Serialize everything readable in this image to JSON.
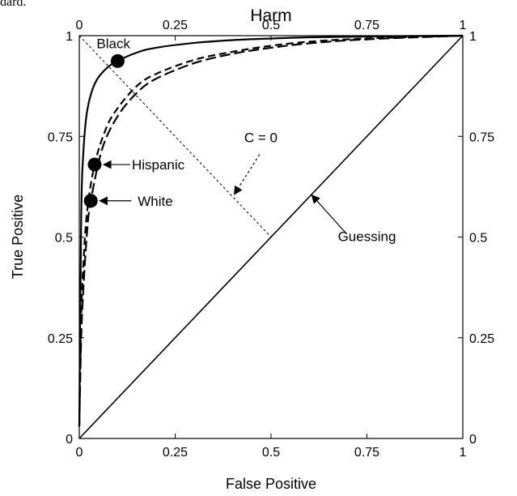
{
  "caption_fragment": "dard.",
  "chart_data": {
    "type": "line",
    "title": "",
    "xlabel": "False Positive",
    "ylabel": "True Positive",
    "x2label": "Harm",
    "xlim": [
      0,
      1
    ],
    "ylim": [
      0,
      1
    ],
    "x2lim": [
      0,
      1
    ],
    "xticks": [
      "0",
      "0.25",
      "0.5",
      "0.75",
      "1"
    ],
    "yticks": [
      "0",
      "0.25",
      "0.5",
      "0.75",
      "1"
    ],
    "x2ticks": [
      "0",
      "0.25",
      "0.5",
      "0.75",
      "1"
    ],
    "y2ticks": [
      "0",
      "0.25",
      "0.5",
      "0.75",
      "1"
    ],
    "grid": false,
    "series": [
      {
        "name": "Black",
        "style": "solid",
        "x": [
          0.0,
          0.005,
          0.01,
          0.02,
          0.04,
          0.07,
          0.1,
          0.15,
          0.2,
          0.3,
          0.4,
          0.5,
          0.6,
          0.75,
          1.0
        ],
        "y": [
          0.03,
          0.55,
          0.7,
          0.81,
          0.88,
          0.918,
          0.937,
          0.958,
          0.97,
          0.982,
          0.989,
          0.993,
          0.996,
          0.998,
          1.0
        ]
      },
      {
        "name": "Hispanic",
        "style": "dashed",
        "x": [
          0.0,
          0.005,
          0.01,
          0.02,
          0.04,
          0.07,
          0.1,
          0.15,
          0.2,
          0.3,
          0.4,
          0.5,
          0.6,
          0.75,
          1.0
        ],
        "y": [
          0.03,
          0.3,
          0.42,
          0.56,
          0.68,
          0.77,
          0.82,
          0.875,
          0.905,
          0.94,
          0.96,
          0.975,
          0.985,
          0.993,
          1.0
        ]
      },
      {
        "name": "White",
        "style": "dashed",
        "x": [
          0.0,
          0.005,
          0.01,
          0.02,
          0.03,
          0.06,
          0.1,
          0.15,
          0.2,
          0.3,
          0.4,
          0.5,
          0.6,
          0.75,
          1.0
        ],
        "y": [
          0.03,
          0.25,
          0.36,
          0.51,
          0.59,
          0.72,
          0.8,
          0.858,
          0.893,
          0.932,
          0.955,
          0.97,
          0.981,
          0.991,
          1.0
        ]
      },
      {
        "name": "Guessing",
        "style": "solid",
        "x": [
          0,
          1
        ],
        "y": [
          0,
          1
        ]
      }
    ],
    "reference_lines": [
      {
        "name": "C = 0",
        "style": "dotted",
        "x": [
          0,
          0.5
        ],
        "y": [
          1,
          0.5
        ]
      }
    ],
    "points": [
      {
        "label": "Black",
        "x": 0.1,
        "y": 0.937
      },
      {
        "label": "Hispanic",
        "x": 0.04,
        "y": 0.68
      },
      {
        "label": "White",
        "x": 0.03,
        "y": 0.59
      }
    ],
    "annotations": [
      {
        "text": "Black",
        "x": 0.1,
        "y": 0.937,
        "arrow": false
      },
      {
        "text": "Hispanic",
        "x": 0.04,
        "y": 0.68,
        "arrow": true
      },
      {
        "text": "White",
        "x": 0.03,
        "y": 0.59,
        "arrow": true
      },
      {
        "text": "C = 0",
        "x": 0.4,
        "y": 0.6,
        "arrow": true,
        "arrow_style": "dotted"
      },
      {
        "text": "Guessing",
        "x": 0.6,
        "y": 0.6,
        "arrow": true
      }
    ]
  }
}
